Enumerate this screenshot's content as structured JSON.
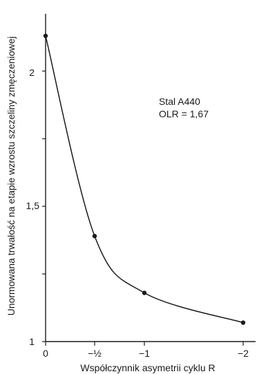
{
  "chart_data": {
    "type": "line",
    "xlabel": "Współczynnik asymetrii cyklu R",
    "ylabel": "Unormowana trwałość na etapie wzrostu szczeliny zmęczeniowej",
    "x_tick_labels": [
      "0",
      "−½",
      "−1",
      "−2"
    ],
    "y_tick_labels": [
      "1",
      "1,5",
      "2"
    ],
    "x": [
      0,
      -0.5,
      -1,
      -2
    ],
    "y": [
      2.13,
      1.39,
      1.18,
      1.07
    ],
    "xlim": [
      0,
      -2.1
    ],
    "ylim": [
      1,
      2.25
    ],
    "grid": false,
    "annotation": {
      "line1": "Stal A440",
      "line2": "OLR = 1,67"
    },
    "colors": {
      "line": "#1a1a1a",
      "marker": "#1a1a1a"
    }
  }
}
